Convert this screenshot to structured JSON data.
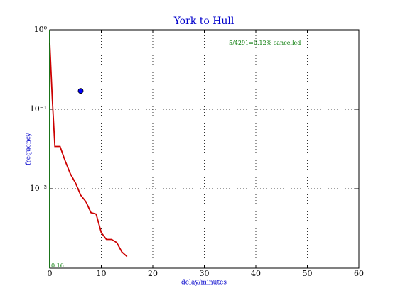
{
  "chart_data": {
    "type": "line",
    "title": "York to Hull",
    "xlabel": "delay/minutes",
    "ylabel": "frequency",
    "log_y": true,
    "grid": true,
    "xlim": [
      0,
      60
    ],
    "xticks": [
      0,
      10,
      20,
      30,
      40,
      50,
      60
    ],
    "ylim": [
      0.001,
      1
    ],
    "yticks": [
      {
        "value": 1,
        "label": "10⁰"
      },
      {
        "value": 0.1,
        "label": "10⁻¹"
      },
      {
        "value": 0.01,
        "label": "10⁻²"
      }
    ],
    "series": [
      {
        "color": "#cc0000",
        "x": [
          0,
          0.5,
          1,
          2,
          3,
          4,
          5,
          6,
          7,
          8,
          9,
          10,
          11,
          12,
          13,
          14,
          15
        ],
        "values": [
          0.69,
          0.133,
          0.034,
          0.034,
          0.0223,
          0.0154,
          0.0118,
          0.0083,
          0.0069,
          0.005,
          0.0048,
          0.0028,
          0.0023,
          0.0023,
          0.0021,
          0.0016,
          0.0014
        ]
      },
      {
        "color": "#006400",
        "x": [
          0,
          0
        ],
        "values": [
          1,
          0.001
        ]
      },
      {
        "color": "#0000ff",
        "marker": true,
        "x": [
          6
        ],
        "values": [
          0.17
        ]
      }
    ],
    "annotations": [
      "5/4291=0.12% cancelled",
      "0.16"
    ],
    "annotation_color": "#007700"
  }
}
